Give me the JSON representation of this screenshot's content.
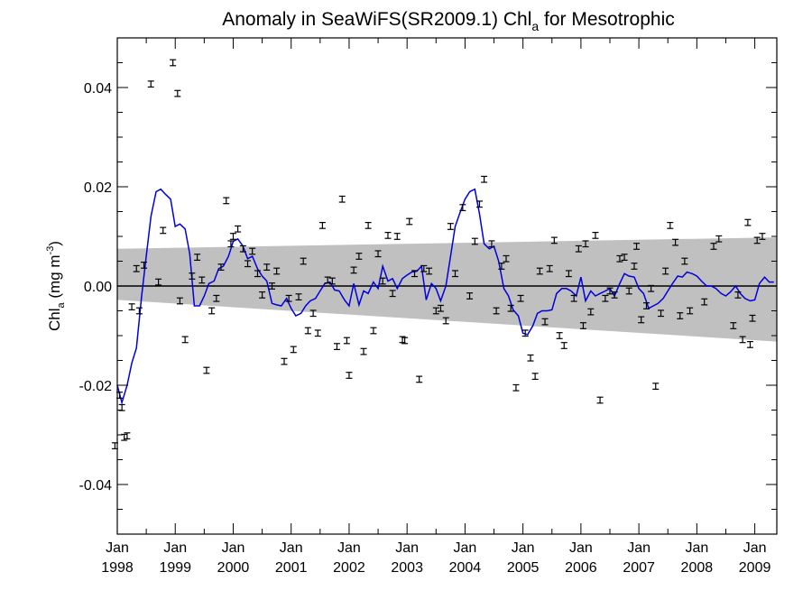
{
  "chart_data": {
    "type": "scatter",
    "title_main": "Anomaly in SeaWiFS(SR2009.1) Chl",
    "title_sub": "a",
    "title_end": " for Mesotrophic",
    "ylabel_main": "Chl",
    "ylabel_sub": "a",
    "ylabel_units_a": " (mg m",
    "ylabel_units_sup": "-3",
    "ylabel_units_b": ")",
    "xlim": [
      1998.0,
      2009.38
    ],
    "ylim": [
      -0.05,
      0.05
    ],
    "y_ticks": [
      {
        "value": 0.04,
        "label": "0.04"
      },
      {
        "value": 0.02,
        "label": "0.02"
      },
      {
        "value": 0.0,
        "label": "0.00"
      },
      {
        "value": -0.02,
        "label": "-0.02"
      },
      {
        "value": -0.04,
        "label": "-0.04"
      }
    ],
    "x_ticks": [
      {
        "value": 1998.0,
        "month": "Jan",
        "year": "1998"
      },
      {
        "value": 1999.0,
        "month": "Jan",
        "year": "1999"
      },
      {
        "value": 2000.0,
        "month": "Jan",
        "year": "2000"
      },
      {
        "value": 2001.0,
        "month": "Jan",
        "year": "2001"
      },
      {
        "value": 2002.0,
        "month": "Jan",
        "year": "2002"
      },
      {
        "value": 2003.0,
        "month": "Jan",
        "year": "2003"
      },
      {
        "value": 2004.0,
        "month": "Jan",
        "year": "2004"
      },
      {
        "value": 2005.0,
        "month": "Jan",
        "year": "2005"
      },
      {
        "value": 2006.0,
        "month": "Jan",
        "year": "2006"
      },
      {
        "value": 2007.0,
        "month": "Jan",
        "year": "2007"
      },
      {
        "value": 2008.0,
        "month": "Jan",
        "year": "2008"
      },
      {
        "value": 2009.0,
        "month": "Jan",
        "year": "2009"
      }
    ],
    "confidence_band": {
      "start": [
        1998.0,
        -0.0028,
        0.0075
      ],
      "end": [
        2009.38,
        -0.0112,
        0.0098
      ],
      "color": "#c0c0c0"
    },
    "zero_line": true,
    "grid": false,
    "series": [
      {
        "kind": "points_with_error",
        "color": "#000000",
        "error": 0.0006,
        "points": [
          [
            1997.96,
            -0.0322
          ],
          [
            1998.04,
            -0.022
          ],
          [
            1998.08,
            -0.0245
          ],
          [
            1998.12,
            -0.0305
          ],
          [
            1998.17,
            -0.0302
          ],
          [
            1998.25,
            -0.0042
          ],
          [
            1998.33,
            0.0035
          ],
          [
            1998.38,
            -0.005
          ],
          [
            1998.46,
            0.0042
          ],
          [
            1998.58,
            0.0407
          ],
          [
            1998.71,
            0.0008
          ],
          [
            1998.79,
            0.0112
          ],
          [
            1998.96,
            0.045
          ],
          [
            1999.04,
            0.0388
          ],
          [
            1999.08,
            -0.003
          ],
          [
            1999.17,
            -0.0108
          ],
          [
            1999.29,
            0.002
          ],
          [
            1999.38,
            0.0058
          ],
          [
            1999.46,
            0.0012
          ],
          [
            1999.54,
            -0.017
          ],
          [
            1999.63,
            -0.005
          ],
          [
            1999.71,
            -0.0025
          ],
          [
            1999.79,
            0.0038
          ],
          [
            1999.88,
            0.0172
          ],
          [
            1999.96,
            0.0085
          ],
          [
            2000.0,
            0.01
          ],
          [
            2000.08,
            0.0115
          ],
          [
            2000.17,
            0.0075
          ],
          [
            2000.25,
            0.0045
          ],
          [
            2000.33,
            0.007
          ],
          [
            2000.42,
            0.0025
          ],
          [
            2000.5,
            -0.0018
          ],
          [
            2000.58,
            0.0038
          ],
          [
            2000.67,
            0.0
          ],
          [
            2000.75,
            0.003
          ],
          [
            2000.88,
            -0.0152
          ],
          [
            2000.96,
            -0.0025
          ],
          [
            2001.04,
            -0.0128
          ],
          [
            2001.13,
            -0.0022
          ],
          [
            2001.21,
            0.005
          ],
          [
            2001.29,
            -0.009
          ],
          [
            2001.38,
            -0.0055
          ],
          [
            2001.46,
            -0.0095
          ],
          [
            2001.54,
            0.0122
          ],
          [
            2001.63,
            0.0012
          ],
          [
            2001.71,
            0.001
          ],
          [
            2001.79,
            -0.0122
          ],
          [
            2001.88,
            0.0175
          ],
          [
            2001.96,
            -0.011
          ],
          [
            2002.0,
            -0.018
          ],
          [
            2002.08,
            0.0032
          ],
          [
            2002.17,
            0.006
          ],
          [
            2002.25,
            -0.0132
          ],
          [
            2002.33,
            0.0122
          ],
          [
            2002.42,
            -0.009
          ],
          [
            2002.5,
            0.0065
          ],
          [
            2002.58,
            0.001
          ],
          [
            2002.67,
            0.0102
          ],
          [
            2002.75,
            -0.0015
          ],
          [
            2002.83,
            0.01
          ],
          [
            2002.92,
            -0.0108
          ],
          [
            2002.96,
            -0.011
          ],
          [
            2003.04,
            0.013
          ],
          [
            2003.13,
            0.0025
          ],
          [
            2003.21,
            -0.0188
          ],
          [
            2003.29,
            0.0035
          ],
          [
            2003.38,
            0.003
          ],
          [
            2003.5,
            -0.005
          ],
          [
            2003.58,
            -0.0045
          ],
          [
            2003.67,
            -0.007
          ],
          [
            2003.75,
            0.012
          ],
          [
            2003.83,
            0.0025
          ],
          [
            2003.96,
            0.0158
          ],
          [
            2004.08,
            -0.002
          ],
          [
            2004.17,
            0.009
          ],
          [
            2004.25,
            0.0165
          ],
          [
            2004.33,
            0.0215
          ],
          [
            2004.46,
            0.0085
          ],
          [
            2004.54,
            -0.005
          ],
          [
            2004.63,
            0.004
          ],
          [
            2004.71,
            0.0055
          ],
          [
            2004.79,
            -0.0045
          ],
          [
            2004.88,
            -0.0205
          ],
          [
            2004.96,
            -0.0025
          ],
          [
            2005.04,
            -0.0095
          ],
          [
            2005.13,
            -0.0145
          ],
          [
            2005.21,
            -0.0182
          ],
          [
            2005.29,
            0.003
          ],
          [
            2005.38,
            -0.0072
          ],
          [
            2005.46,
            0.0035
          ],
          [
            2005.54,
            0.0092
          ],
          [
            2005.63,
            -0.01
          ],
          [
            2005.71,
            -0.012
          ],
          [
            2005.79,
            0.0025
          ],
          [
            2005.88,
            -0.0025
          ],
          [
            2005.96,
            0.0075
          ],
          [
            2006.04,
            -0.008
          ],
          [
            2006.08,
            0.0085
          ],
          [
            2006.17,
            -0.0052
          ],
          [
            2006.25,
            0.0102
          ],
          [
            2006.33,
            -0.023
          ],
          [
            2006.42,
            -0.0025
          ],
          [
            2006.5,
            -0.001
          ],
          [
            2006.58,
            -0.0018
          ],
          [
            2006.67,
            0.0055
          ],
          [
            2006.75,
            0.0058
          ],
          [
            2006.83,
            -0.001
          ],
          [
            2006.92,
            0.004
          ],
          [
            2006.96,
            0.008
          ],
          [
            2007.04,
            -0.0068
          ],
          [
            2007.13,
            -0.004
          ],
          [
            2007.21,
            -0.0005
          ],
          [
            2007.29,
            -0.0202
          ],
          [
            2007.38,
            -0.0055
          ],
          [
            2007.46,
            0.003
          ],
          [
            2007.54,
            0.0122
          ],
          [
            2007.63,
            0.0088
          ],
          [
            2007.71,
            -0.006
          ],
          [
            2007.79,
            0.005
          ],
          [
            2007.88,
            -0.005
          ],
          [
            2008.13,
            -0.0032
          ],
          [
            2008.29,
            0.008
          ],
          [
            2008.38,
            0.0095
          ],
          [
            2008.63,
            -0.008
          ],
          [
            2008.71,
            -0.0018
          ],
          [
            2008.79,
            -0.0108
          ],
          [
            2008.88,
            0.0128
          ],
          [
            2008.92,
            -0.0118
          ],
          [
            2008.96,
            -0.0065
          ],
          [
            2009.04,
            0.0092
          ],
          [
            2009.13,
            0.01
          ]
        ]
      },
      {
        "kind": "line",
        "color": "#0000dd",
        "points": [
          [
            1998.0,
            -0.02
          ],
          [
            1998.08,
            -0.0235
          ],
          [
            1998.17,
            -0.02
          ],
          [
            1998.25,
            -0.0155
          ],
          [
            1998.33,
            -0.0125
          ],
          [
            1998.42,
            -0.002
          ],
          [
            1998.5,
            0.006
          ],
          [
            1998.58,
            0.014
          ],
          [
            1998.67,
            0.019
          ],
          [
            1998.75,
            0.0195
          ],
          [
            1998.83,
            0.0185
          ],
          [
            1998.92,
            0.0175
          ],
          [
            1999.0,
            0.012
          ],
          [
            1999.08,
            0.0125
          ],
          [
            1999.17,
            0.0115
          ],
          [
            1999.25,
            0.0065
          ],
          [
            1999.33,
            -0.004
          ],
          [
            1999.42,
            -0.004
          ],
          [
            1999.5,
            -0.002
          ],
          [
            1999.58,
            0.0005
          ],
          [
            1999.67,
            0.001
          ],
          [
            1999.75,
            0.0035
          ],
          [
            1999.83,
            0.004
          ],
          [
            1999.92,
            0.006
          ],
          [
            2000.0,
            0.009
          ],
          [
            2000.08,
            0.0095
          ],
          [
            2000.17,
            0.008
          ],
          [
            2000.25,
            0.0055
          ],
          [
            2000.33,
            0.006
          ],
          [
            2000.42,
            0.0035
          ],
          [
            2000.5,
            0.002
          ],
          [
            2000.58,
            0.001
          ],
          [
            2000.67,
            -0.0035
          ],
          [
            2000.75,
            -0.0038
          ],
          [
            2000.83,
            -0.004
          ],
          [
            2000.92,
            -0.0025
          ],
          [
            2001.0,
            -0.0045
          ],
          [
            2001.08,
            -0.006
          ],
          [
            2001.17,
            -0.0055
          ],
          [
            2001.25,
            -0.004
          ],
          [
            2001.33,
            -0.003
          ],
          [
            2001.42,
            -0.0025
          ],
          [
            2001.5,
            -0.001
          ],
          [
            2001.58,
            0.0005
          ],
          [
            2001.67,
            0.0008
          ],
          [
            2001.75,
            -0.0008
          ],
          [
            2001.83,
            -0.001
          ],
          [
            2001.92,
            -0.0028
          ],
          [
            2002.0,
            -0.004
          ],
          [
            2002.08,
            0.0005
          ],
          [
            2002.17,
            -0.0038
          ],
          [
            2002.25,
            -0.001
          ],
          [
            2002.33,
            -0.0015
          ],
          [
            2002.42,
            0.0008
          ],
          [
            2002.5,
            -0.0005
          ],
          [
            2002.58,
            0.004
          ],
          [
            2002.67,
            0.001
          ],
          [
            2002.75,
            0.0015
          ],
          [
            2002.83,
            -0.0005
          ],
          [
            2002.92,
            0.0015
          ],
          [
            2003.0,
            0.0022
          ],
          [
            2003.08,
            0.0028
          ],
          [
            2003.17,
            0.003
          ],
          [
            2003.25,
            0.004
          ],
          [
            2003.33,
            -0.0028
          ],
          [
            2003.42,
            0.0005
          ],
          [
            2003.5,
            -0.0005
          ],
          [
            2003.58,
            -0.003
          ],
          [
            2003.67,
            0.0
          ],
          [
            2003.75,
            0.006
          ],
          [
            2003.83,
            0.012
          ],
          [
            2003.92,
            0.015
          ],
          [
            2004.0,
            0.0175
          ],
          [
            2004.08,
            0.019
          ],
          [
            2004.17,
            0.0195
          ],
          [
            2004.25,
            0.0145
          ],
          [
            2004.33,
            0.0085
          ],
          [
            2004.42,
            0.0075
          ],
          [
            2004.5,
            0.008
          ],
          [
            2004.58,
            0.005
          ],
          [
            2004.67,
            -0.0005
          ],
          [
            2004.75,
            -0.002
          ],
          [
            2004.83,
            -0.0048
          ],
          [
            2004.92,
            -0.006
          ],
          [
            2005.0,
            -0.0095
          ],
          [
            2005.08,
            -0.0098
          ],
          [
            2005.17,
            -0.008
          ],
          [
            2005.25,
            -0.0055
          ],
          [
            2005.33,
            -0.005
          ],
          [
            2005.42,
            -0.005
          ],
          [
            2005.5,
            -0.0048
          ],
          [
            2005.58,
            -0.0015
          ],
          [
            2005.67,
            -0.0005
          ],
          [
            2005.75,
            -0.0005
          ],
          [
            2005.83,
            -0.001
          ],
          [
            2005.92,
            -0.002
          ],
          [
            2006.0,
            0.0018
          ],
          [
            2006.08,
            -0.003
          ],
          [
            2006.17,
            -0.001
          ],
          [
            2006.25,
            -0.002
          ],
          [
            2006.33,
            -0.0015
          ],
          [
            2006.42,
            -0.001
          ],
          [
            2006.5,
            -0.0005
          ],
          [
            2006.58,
            -0.002
          ],
          [
            2006.67,
            0.0005
          ],
          [
            2006.75,
            0.0025
          ],
          [
            2006.83,
            0.002
          ],
          [
            2006.92,
            0.0018
          ],
          [
            2007.0,
            -0.0005
          ],
          [
            2007.08,
            -0.0015
          ],
          [
            2007.17,
            -0.0045
          ],
          [
            2007.25,
            -0.004
          ],
          [
            2007.33,
            -0.0035
          ],
          [
            2007.42,
            -0.0025
          ],
          [
            2007.5,
            -0.001
          ],
          [
            2007.58,
            0.0005
          ],
          [
            2007.67,
            0.002
          ],
          [
            2007.75,
            0.0018
          ],
          [
            2007.83,
            0.0028
          ],
          [
            2007.92,
            0.0025
          ],
          [
            2008.0,
            0.002
          ],
          [
            2008.08,
            0.001
          ],
          [
            2008.17,
            0.0
          ],
          [
            2008.25,
            0.0
          ],
          [
            2008.33,
            -0.0005
          ],
          [
            2008.42,
            -0.0015
          ],
          [
            2008.5,
            -0.002
          ],
          [
            2008.58,
            -0.0012
          ],
          [
            2008.67,
            0.0
          ],
          [
            2008.75,
            -0.0015
          ],
          [
            2008.83,
            -0.0025
          ],
          [
            2008.92,
            -0.003
          ],
          [
            2009.0,
            -0.0028
          ],
          [
            2009.08,
            0.0005
          ],
          [
            2009.17,
            0.0018
          ],
          [
            2009.25,
            0.0008
          ],
          [
            2009.33,
            0.0008
          ]
        ]
      }
    ]
  }
}
